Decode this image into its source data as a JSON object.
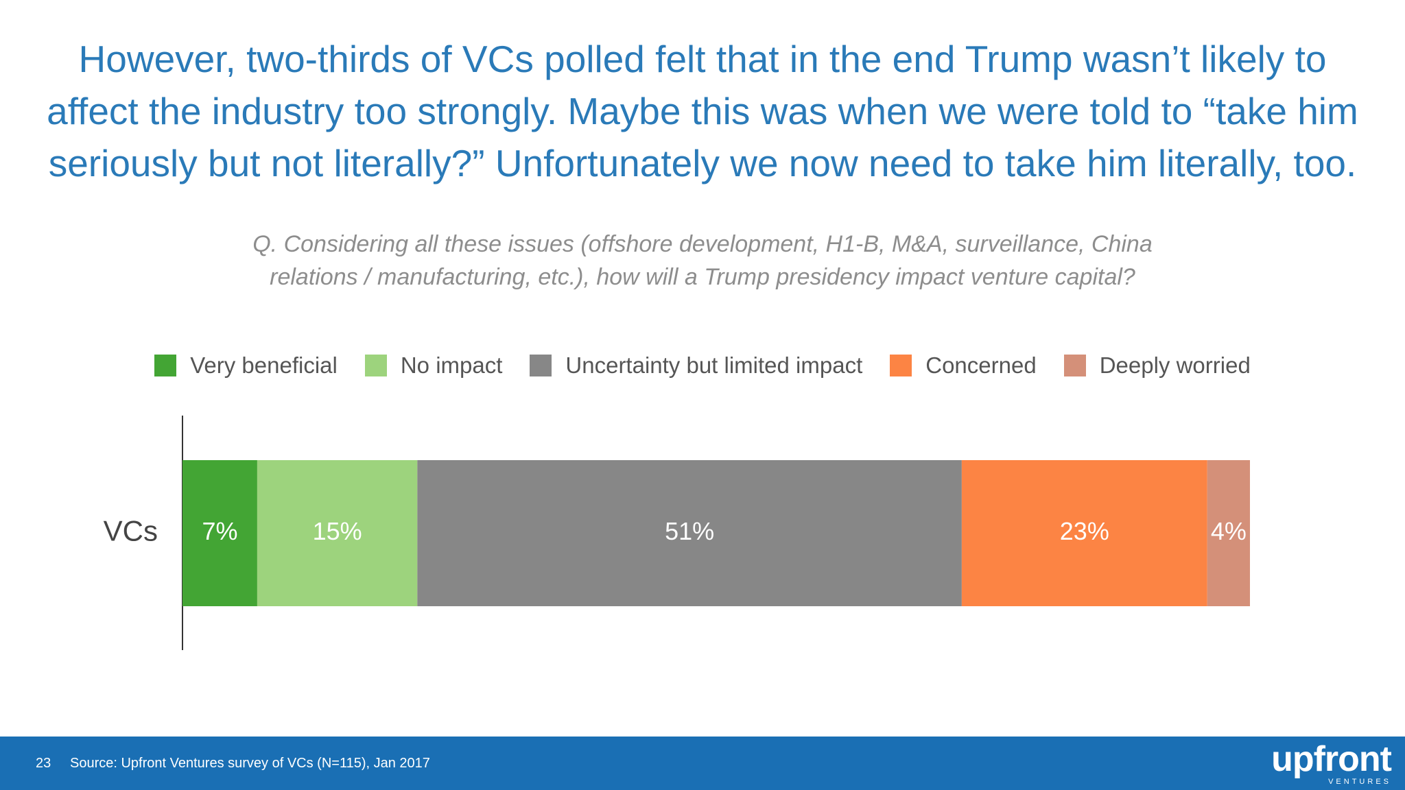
{
  "headline": {
    "line1": "However, two-thirds of VCs polled felt that in the end Trump wasn’t likely to",
    "line2": "affect the industry too strongly. Maybe this was when we were told to “take him",
    "line3": "seriously but not literally?” Unfortunately we now need to take him literally, too."
  },
  "question": {
    "line1": "Q. Considering all these issues (offshore development, H1-B, M&A, surveillance, China",
    "line2": "relations / manufacturing, etc.), how will a Trump presidency impact venture capital?"
  },
  "chart_data": {
    "type": "bar",
    "orientation": "horizontal",
    "stacked": true,
    "categories": [
      "VCs"
    ],
    "series": [
      {
        "name": "Very beneficial",
        "values": [
          7
        ],
        "label": "7%",
        "color": "#43a534"
      },
      {
        "name": "No impact",
        "values": [
          15
        ],
        "label": "15%",
        "color": "#9dd37d"
      },
      {
        "name": "Uncertainty but limited impact",
        "values": [
          51
        ],
        "label": "51%",
        "color": "#878787"
      },
      {
        "name": "Concerned",
        "values": [
          23
        ],
        "label": "23%",
        "color": "#fc8444"
      },
      {
        "name": "Deeply worried",
        "values": [
          4
        ],
        "label": "4%",
        "color": "#d49079"
      }
    ],
    "legend_position": "top",
    "grid": false
  },
  "footer": {
    "page_number": "23",
    "source": "Source: Upfront Ventures survey of VCs (N=115), Jan 2017",
    "logo_word": "upfront",
    "logo_sub": "VENTURES"
  },
  "colors": {
    "headline": "#2a7ab8",
    "footer_bg": "#1a6fb4"
  }
}
